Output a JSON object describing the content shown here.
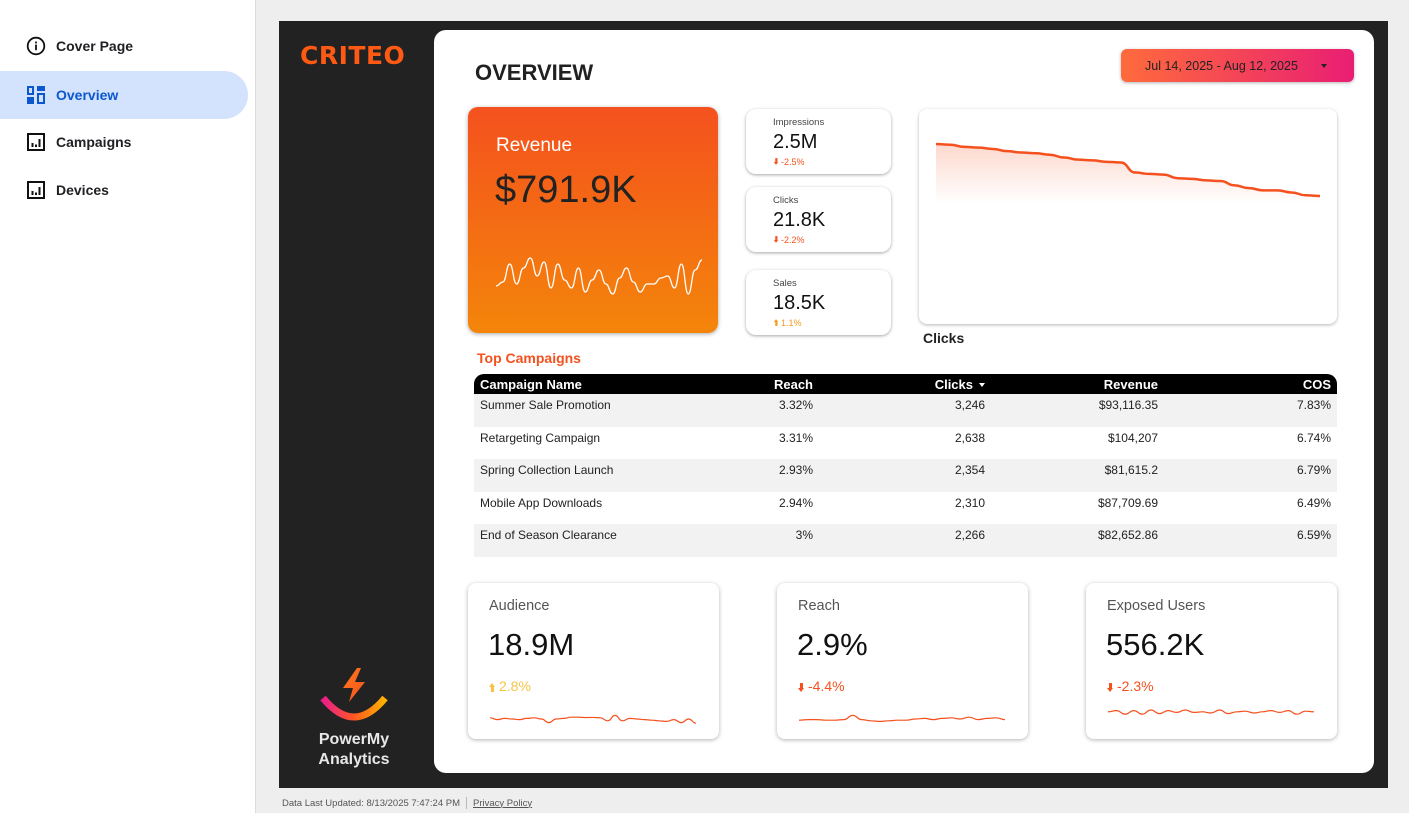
{
  "nav": {
    "items": [
      {
        "label": "Cover Page",
        "icon": "info-icon",
        "active": false
      },
      {
        "label": "Overview",
        "icon": "dashboard-icon",
        "active": true
      },
      {
        "label": "Campaigns",
        "icon": "bar-chart-icon",
        "active": false
      },
      {
        "label": "Devices",
        "icon": "bar-chart-icon",
        "active": false
      }
    ]
  },
  "brand": {
    "logo_text": "CRITEO",
    "partner_line1": "PowerMy",
    "partner_line2": "Analytics"
  },
  "header": {
    "title": "OVERVIEW",
    "date_range": "Jul 14, 2025 - Aug 12, 2025"
  },
  "colors": {
    "accent": "#f4511e",
    "negative": "#f4511e",
    "positive_orange": "#f59a1b",
    "positive_yellow": "#f6c344",
    "nav_active_bg": "#d3e3fd",
    "nav_active_text": "#0b57d0"
  },
  "revenue": {
    "label": "Revenue",
    "value": "$791.9K",
    "sparkline": [
      0.25,
      0.35,
      0.8,
      0.3,
      0.7,
      0.95,
      0.5,
      0.85,
      0.2,
      0.8,
      0.4,
      0.2,
      0.7,
      0.1,
      0.4,
      0.65,
      0.3,
      0.05,
      0.45,
      0.7,
      0.35,
      0.1,
      0.3,
      0.3,
      0.45,
      0.5,
      0.2,
      0.8,
      0.05,
      0.65,
      0.9
    ]
  },
  "mini_kpis": [
    {
      "label": "Impressions",
      "value": "2.5M",
      "change": "-2.5%",
      "direction": "down"
    },
    {
      "label": "Clicks",
      "value": "21.8K",
      "change": "-2.2%",
      "direction": "down"
    },
    {
      "label": "Sales",
      "value": "18.5K",
      "change": "1.1%",
      "direction": "up"
    }
  ],
  "clicks_chart": {
    "title": "Clicks",
    "type": "area",
    "note": "Relative daily trend; no axis labels shown",
    "values": [
      1.0,
      0.995,
      0.98,
      0.975,
      0.965,
      0.95,
      0.94,
      0.935,
      0.925,
      0.905,
      0.89,
      0.885,
      0.875,
      0.87,
      0.8,
      0.79,
      0.785,
      0.76,
      0.755,
      0.745,
      0.74,
      0.71,
      0.69,
      0.675,
      0.675,
      0.66,
      0.64,
      0.635
    ]
  },
  "top_campaigns": {
    "title": "Top Campaigns",
    "columns": [
      "Campaign Name",
      "Reach",
      "Clicks",
      "Revenue",
      "COS"
    ],
    "sorted_column": "Clicks",
    "rows": [
      [
        "Summer Sale Promotion",
        "3.32%",
        "3,246",
        "$93,116.35",
        "7.83%"
      ],
      [
        "Retargeting Campaign",
        "3.31%",
        "2,638",
        "$104,207",
        "6.74%"
      ],
      [
        "Spring Collection Launch",
        "2.93%",
        "2,354",
        "$81,615.2",
        "6.79%"
      ],
      [
        "Mobile App Downloads",
        "2.94%",
        "2,310",
        "$87,709.69",
        "6.49%"
      ],
      [
        "End of Season Clearance",
        "3%",
        "2,266",
        "$82,652.86",
        "6.59%"
      ]
    ]
  },
  "bottom_kpis": [
    {
      "label": "Audience",
      "value": "18.9M",
      "change": "2.8%",
      "direction": "up",
      "sparkline": [
        0.6,
        0.45,
        0.55,
        0.5,
        0.45,
        0.55,
        0.6,
        0.5,
        0.2,
        0.5,
        0.55,
        0.65,
        0.65,
        0.62,
        0.63,
        0.6,
        0.35,
        0.8,
        0.35,
        0.55,
        0.5,
        0.45,
        0.4,
        0.35,
        0.3,
        0.45,
        0.2,
        0.5,
        0.15
      ]
    },
    {
      "label": "Reach",
      "value": "2.9%",
      "change": "-4.4%",
      "direction": "down",
      "sparkline": [
        0.4,
        0.45,
        0.45,
        0.4,
        0.4,
        0.45,
        0.8,
        0.45,
        0.35,
        0.3,
        0.35,
        0.4,
        0.4,
        0.5,
        0.55,
        0.45,
        0.55,
        0.6,
        0.5,
        0.65,
        0.45,
        0.55,
        0.6,
        0.45
      ]
    },
    {
      "label": "Exposed Users",
      "value": "556.2K",
      "change": "-2.3%",
      "direction": "down",
      "sparkline": [
        0.6,
        0.7,
        0.4,
        0.7,
        0.4,
        0.75,
        0.45,
        0.7,
        0.55,
        0.75,
        0.55,
        0.6,
        0.5,
        0.75,
        0.45,
        0.6,
        0.65,
        0.5,
        0.6,
        0.7,
        0.55,
        0.7,
        0.4,
        0.65,
        0.6
      ]
    }
  ],
  "footer": {
    "updated": "Data Last Updated: 8/13/2025 7:47:24 PM",
    "privacy": "Privacy Policy"
  }
}
